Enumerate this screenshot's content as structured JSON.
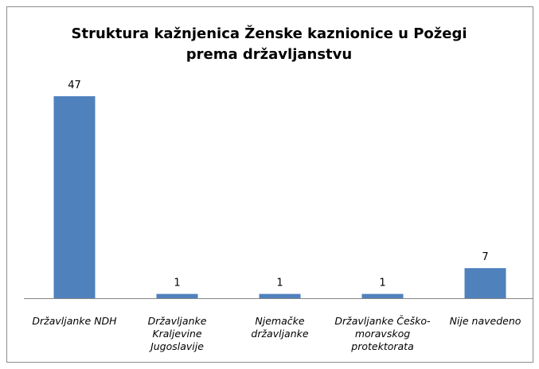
{
  "chart_data": {
    "type": "bar",
    "title": "Struktura kažnjenica Ženske kaznionice u Požegi prema državljanstvu",
    "categories": [
      "Državljanke NDH",
      "Državljanke Kraljevine Jugoslavije",
      "Njemačke državljanke",
      "Državljanke Češko-moravskog protektorata",
      "Nije navedeno"
    ],
    "values": [
      47,
      1,
      1,
      1,
      7
    ],
    "color": "#4f81bd"
  }
}
